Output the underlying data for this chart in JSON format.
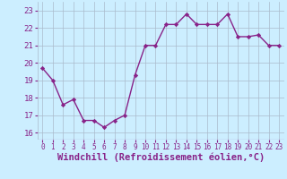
{
  "x": [
    0,
    1,
    2,
    3,
    4,
    5,
    6,
    7,
    8,
    9,
    10,
    11,
    12,
    13,
    14,
    15,
    16,
    17,
    18,
    19,
    20,
    21,
    22,
    23
  ],
  "y": [
    19.7,
    19.0,
    17.6,
    17.9,
    16.7,
    16.7,
    16.3,
    16.7,
    17.0,
    19.3,
    21.0,
    21.0,
    22.2,
    22.2,
    22.8,
    22.2,
    22.2,
    22.2,
    22.8,
    21.5,
    21.5,
    21.6,
    21.0,
    21.0
  ],
  "line_color": "#882288",
  "marker": "D",
  "marker_size": 2.2,
  "bg_color": "#cceeff",
  "grid_color": "#aabbcc",
  "xlabel": "Windchill (Refroidissement éolien,°C)",
  "xlabel_color": "#882288",
  "xlabel_fontsize": 7.5,
  "ylabel_ticks": [
    16,
    17,
    18,
    19,
    20,
    21,
    22,
    23
  ],
  "ylim": [
    15.6,
    23.5
  ],
  "xlim": [
    -0.5,
    23.5
  ],
  "xtick_fontsize": 5.5,
  "ytick_fontsize": 6.5,
  "tick_color": "#882288",
  "linewidth": 1.0
}
